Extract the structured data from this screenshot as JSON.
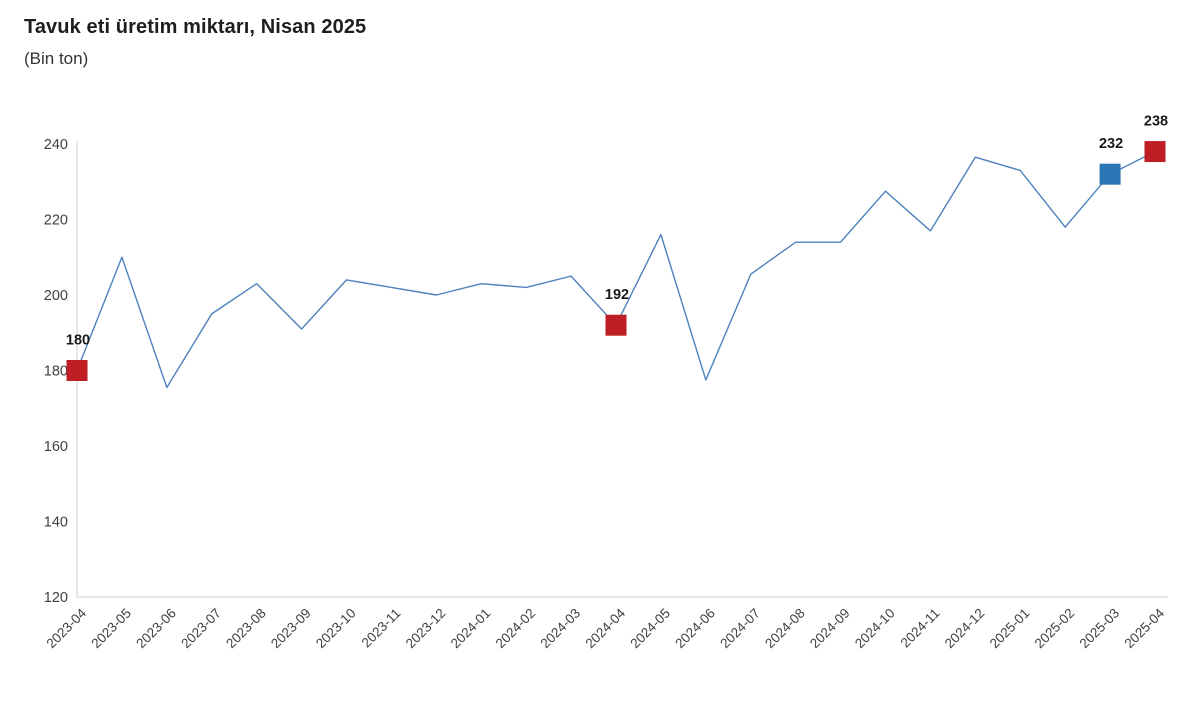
{
  "header": {
    "title": "Tavuk eti üretim miktarı, Nisan 2025",
    "subtitle": "(Bin ton)"
  },
  "chart_data": {
    "type": "line",
    "title": "Tavuk eti üretim miktarı, Nisan 2025",
    "subtitle": "(Bin ton)",
    "unit": "Bin ton",
    "categories": [
      "2023-04",
      "2023-05",
      "2023-06",
      "2023-07",
      "2023-08",
      "2023-09",
      "2023-10",
      "2023-11",
      "2023-12",
      "2024-01",
      "2024-02",
      "2024-03",
      "2024-04",
      "2024-05",
      "2024-06",
      "2024-07",
      "2024-08",
      "2024-09",
      "2024-10",
      "2024-11",
      "2024-12",
      "2025-01",
      "2025-02",
      "2025-03",
      "2025-04"
    ],
    "values": [
      180,
      210,
      175.5,
      195,
      203,
      191,
      204,
      202,
      200,
      203,
      202,
      205,
      192,
      216,
      177.5,
      205.5,
      214,
      214,
      227.5,
      217,
      236.5,
      233,
      218,
      232,
      238
    ],
    "ylim": [
      120,
      240
    ],
    "yticks": [
      120,
      140,
      160,
      180,
      200,
      220,
      240
    ],
    "grid": false,
    "legend": false,
    "x_tick_rotation_deg": -45,
    "styles": {
      "line_color": "#4E81BD",
      "axis_color": "#D9D9D9",
      "tick_label_color": "#404040",
      "value_label_color": "#1A1A1A",
      "red_marker": "#BE1E24",
      "blue_marker": "#2E75B6"
    },
    "annotated_points": [
      {
        "index": 0,
        "category": "2023-04",
        "value": 180,
        "label": "180",
        "color_key": "red_marker"
      },
      {
        "index": 12,
        "category": "2024-04",
        "value": 192,
        "label": "192",
        "color_key": "red_marker"
      },
      {
        "index": 23,
        "category": "2025-03",
        "value": 232,
        "label": "232",
        "color_key": "blue_marker"
      },
      {
        "index": 24,
        "category": "2025-04",
        "value": 238,
        "label": "238",
        "color_key": "red_marker"
      }
    ]
  }
}
